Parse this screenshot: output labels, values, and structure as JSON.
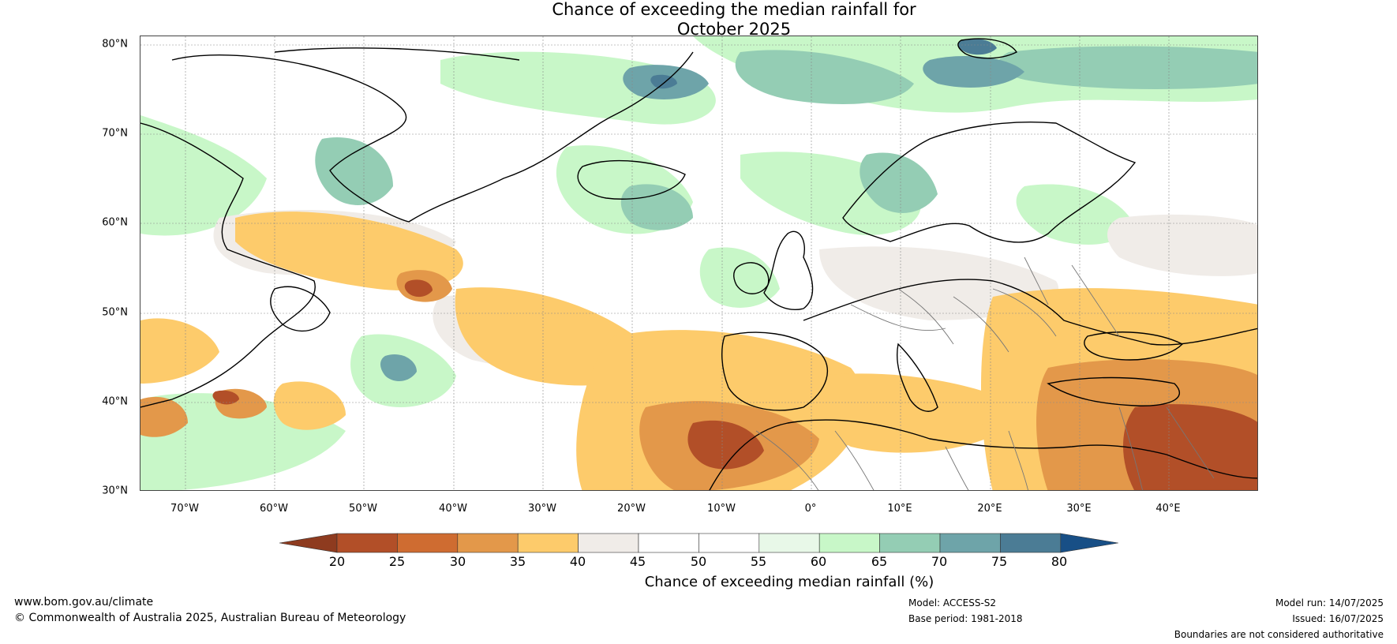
{
  "title": {
    "line1": "Chance of exceeding the median rainfall for",
    "line2": "October 2025"
  },
  "map": {
    "latitude_labels": [
      "80°N",
      "70°N",
      "60°N",
      "50°N",
      "40°N",
      "30°N"
    ],
    "longitude_labels": [
      "70°W",
      "60°W",
      "50°W",
      "40°W",
      "30°W",
      "20°W",
      "10°W",
      "0°",
      "10°E",
      "20°E",
      "30°E",
      "40°E"
    ],
    "regions": [
      {
        "name": "northwest-atlantic-green",
        "category": "60-65"
      },
      {
        "name": "greenland-sea-blue",
        "category": "70-75"
      },
      {
        "name": "norway-green",
        "category": "65-70"
      },
      {
        "name": "labrador-orange",
        "category": "35-40"
      },
      {
        "name": "north-africa-brown",
        "category": "25-30"
      },
      {
        "name": "middle-east-brown",
        "category": "20-25"
      },
      {
        "name": "mid-atlantic-orange",
        "category": "35-40"
      }
    ]
  },
  "colorbar": {
    "ticks": [
      "20",
      "25",
      "30",
      "35",
      "40",
      "45",
      "50",
      "55",
      "60",
      "65",
      "70",
      "75",
      "80"
    ],
    "colors": [
      "#8e3b1f",
      "#b24f28",
      "#cf6c31",
      "#e3984a",
      "#fdcb6b",
      "#f0ece8",
      "#ffffff",
      "#ffffff",
      "#e8f8e8",
      "#c8f7c8",
      "#94cdb4",
      "#6ea4a9",
      "#4b7c95",
      "#184f86"
    ],
    "label": "Chance of exceeding median rainfall (%)"
  },
  "footer": {
    "website": "www.bom.gov.au/climate",
    "copyright": "© Commonwealth of Australia 2025, Australian Bureau of Meteorology",
    "model": "Model: ACCESS-S2",
    "base_period": "Base period: 1981-2018",
    "model_run": "Model run: 14/07/2025",
    "issued": "Issued: 16/07/2025",
    "disclaimer": "Boundaries are not considered authoritative"
  }
}
